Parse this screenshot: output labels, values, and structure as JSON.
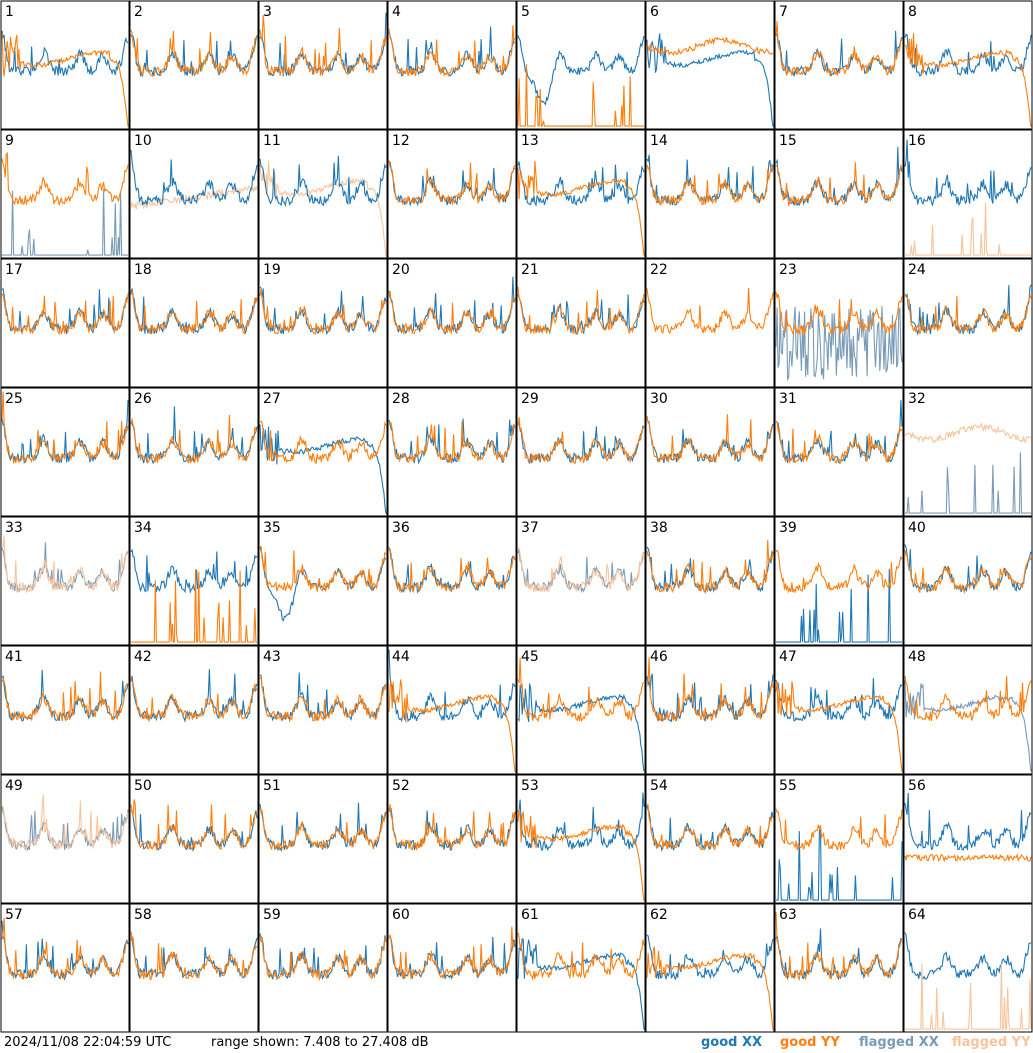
{
  "chart_data": {
    "type": "line",
    "panels": [
      "1",
      "2",
      "3",
      "4",
      "5",
      "6",
      "7",
      "8",
      "9",
      "10",
      "11",
      "12",
      "13",
      "14",
      "15",
      "16",
      "17",
      "18",
      "19",
      "20",
      "21",
      "22",
      "23",
      "24",
      "25",
      "26",
      "27",
      "28",
      "29",
      "30",
      "31",
      "32",
      "33",
      "34",
      "35",
      "36",
      "37",
      "38",
      "39",
      "40",
      "41",
      "42",
      "43",
      "44",
      "45",
      "46",
      "47",
      "48",
      "49",
      "50",
      "51",
      "52",
      "53",
      "54",
      "55",
      "56",
      "57",
      "58",
      "59",
      "60",
      "61",
      "62",
      "63",
      "64"
    ],
    "series": [
      {
        "name": "good XX"
      },
      {
        "name": "good YY"
      },
      {
        "name": "flagged XX"
      },
      {
        "name": "flagged YY"
      }
    ],
    "ylim": [
      7.408,
      27.408
    ],
    "special": {
      "1": "xx:normal,yy:droop",
      "5": "xx:dip,yy:spikes",
      "6": "xx:droop,yy:high",
      "8": "xx:normal,yy:droop",
      "9": "fxx:spikes,yy:normal",
      "10": "fyy:low,xx:normal",
      "11": "fyy:droop,xx:normal",
      "13": "xx:normal,yy:droop",
      "16": "xx:normal,fyy:spikes",
      "22": "yy:normal",
      "23": "fxx:noisy,yy:normal",
      "27": "xx:droop,yy:normal",
      "32": "fyy:high,fxx:spikes",
      "33": "fxx:normal,fyy:normal",
      "34": "xx:normal,yy:spikes",
      "35": "xx:dip,yy:normal",
      "37": "fxx:normal,fyy:normal",
      "39": "xx:spikes,yy:normal",
      "44": "xx:normal,yy:droop",
      "45": "xx:droop,yy:normal",
      "47": "xx:normal,yy:droop",
      "48": "fxx:droop,yy:normal",
      "49": "fxx:normal,fyy:normal",
      "53": "xx:normal,yy:droop",
      "55": "xx:spikes,yy:normal",
      "56": "xx:normal,yy:flatlow",
      "61": "xx:droop,yy:normal",
      "62": "xx:normal,yy:droop",
      "64": "xx:normal,fyy:spikes"
    }
  },
  "footer": {
    "timestamp": "2024/11/08 22:04:59 UTC",
    "range": "range shown: 7.408 to 27.408 dB"
  },
  "legend": {
    "good_xx": "good XX",
    "good_yy": "good YY",
    "flagged_xx": "flagged XX",
    "flagged_yy": "flagged YY"
  },
  "colors": {
    "good_xx": "#1f77b4",
    "good_yy": "#ff7f0e",
    "flagged_xx": "#7a9bb8",
    "flagged_yy": "#f8c49c"
  }
}
